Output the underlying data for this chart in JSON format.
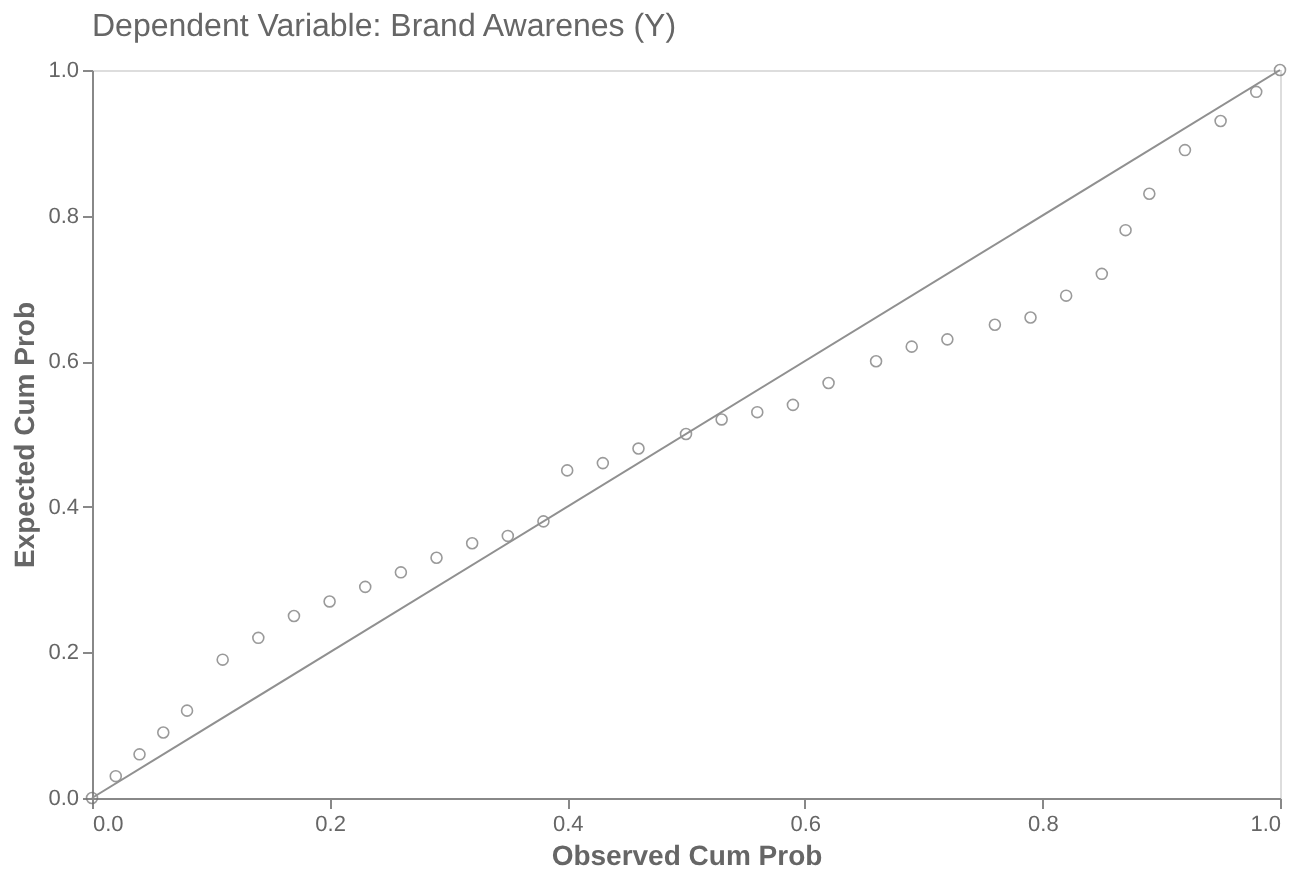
{
  "chart_data": {
    "type": "scatter",
    "title": "Dependent Variable: Brand Awarenes (Y)",
    "xlabel": "Observed Cum Prob",
    "ylabel": "Expected Cum Prob",
    "xlim": [
      0,
      1
    ],
    "ylim": [
      0,
      1
    ],
    "xticks": [
      {
        "value": 0,
        "label": "0.0"
      },
      0.2,
      0.4,
      0.6,
      0.8,
      {
        "value": 1,
        "label": "1.0"
      }
    ],
    "yticks": [
      {
        "value": 0,
        "label": "0.0"
      },
      0.2,
      0.4,
      0.6,
      0.8,
      {
        "value": 1,
        "label": "1.0"
      }
    ],
    "grid": false,
    "series": [
      {
        "marker": "circle",
        "color": "#707070",
        "x": [
          0.0,
          0.02,
          0.04,
          0.06,
          0.08,
          0.11,
          0.14,
          0.17,
          0.2,
          0.23,
          0.26,
          0.29,
          0.32,
          0.35,
          0.38,
          0.4,
          0.43,
          0.46,
          0.5,
          0.53,
          0.56,
          0.59,
          0.62,
          0.66,
          0.69,
          0.72,
          0.76,
          0.79,
          0.82,
          0.85,
          0.87,
          0.89,
          0.92,
          0.95,
          0.98,
          1.0
        ],
        "values": [
          0.0,
          0.03,
          0.06,
          0.09,
          0.12,
          0.19,
          0.22,
          0.25,
          0.27,
          0.29,
          0.31,
          0.33,
          0.35,
          0.36,
          0.38,
          0.45,
          0.46,
          0.48,
          0.5,
          0.52,
          0.53,
          0.54,
          0.57,
          0.6,
          0.62,
          0.63,
          0.65,
          0.66,
          0.69,
          0.72,
          0.78,
          0.83,
          0.89,
          0.93,
          0.97,
          1.0
        ]
      },
      {
        "type": "line",
        "color": "#909090",
        "line_style": "solid",
        "x": [
          0,
          1
        ],
        "values": [
          0,
          1
        ]
      }
    ]
  }
}
